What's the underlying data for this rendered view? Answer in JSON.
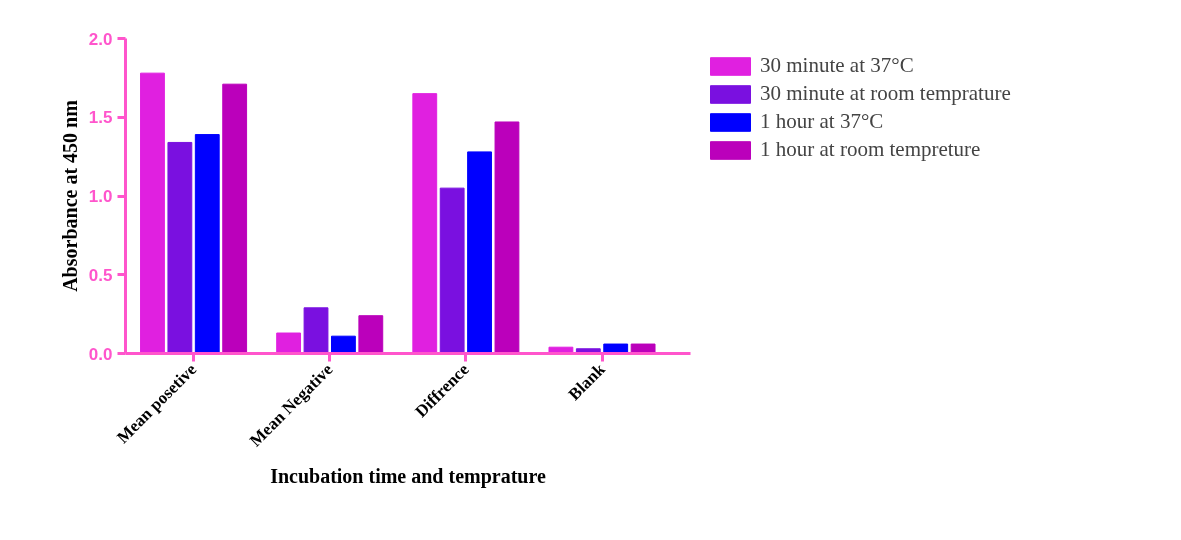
{
  "chart_data": {
    "type": "bar",
    "xlabel": "Incubation time and temprature",
    "ylabel": "Absorbance at 450 nm",
    "categories": [
      "Mean posetive",
      "Mean Negative",
      "Diffrence",
      "Blank"
    ],
    "series": [
      {
        "name": "30 minute at 37°C",
        "color": "#e020e0",
        "values": [
          1.78,
          0.13,
          1.65,
          0.04
        ]
      },
      {
        "name": "30 minute at room temprature",
        "color": "#7a10e0",
        "values": [
          1.34,
          0.29,
          1.05,
          0.03
        ]
      },
      {
        "name": "1 hour at 37°C",
        "color": "#0000ff",
        "values": [
          1.39,
          0.11,
          1.28,
          0.06
        ]
      },
      {
        "name": "1 hour at room tempreture",
        "color": "#bb00bb",
        "values": [
          1.71,
          0.24,
          1.47,
          0.06
        ]
      }
    ],
    "ylim": [
      0,
      2
    ],
    "yticks": [
      {
        "value": 0,
        "label": "0.0"
      },
      {
        "value": 0.5,
        "label": "0.5"
      },
      {
        "value": 1,
        "label": "1.0"
      },
      1.5,
      {
        "value": 2,
        "label": "2.0"
      }
    ],
    "grid": false,
    "legend": "right"
  }
}
